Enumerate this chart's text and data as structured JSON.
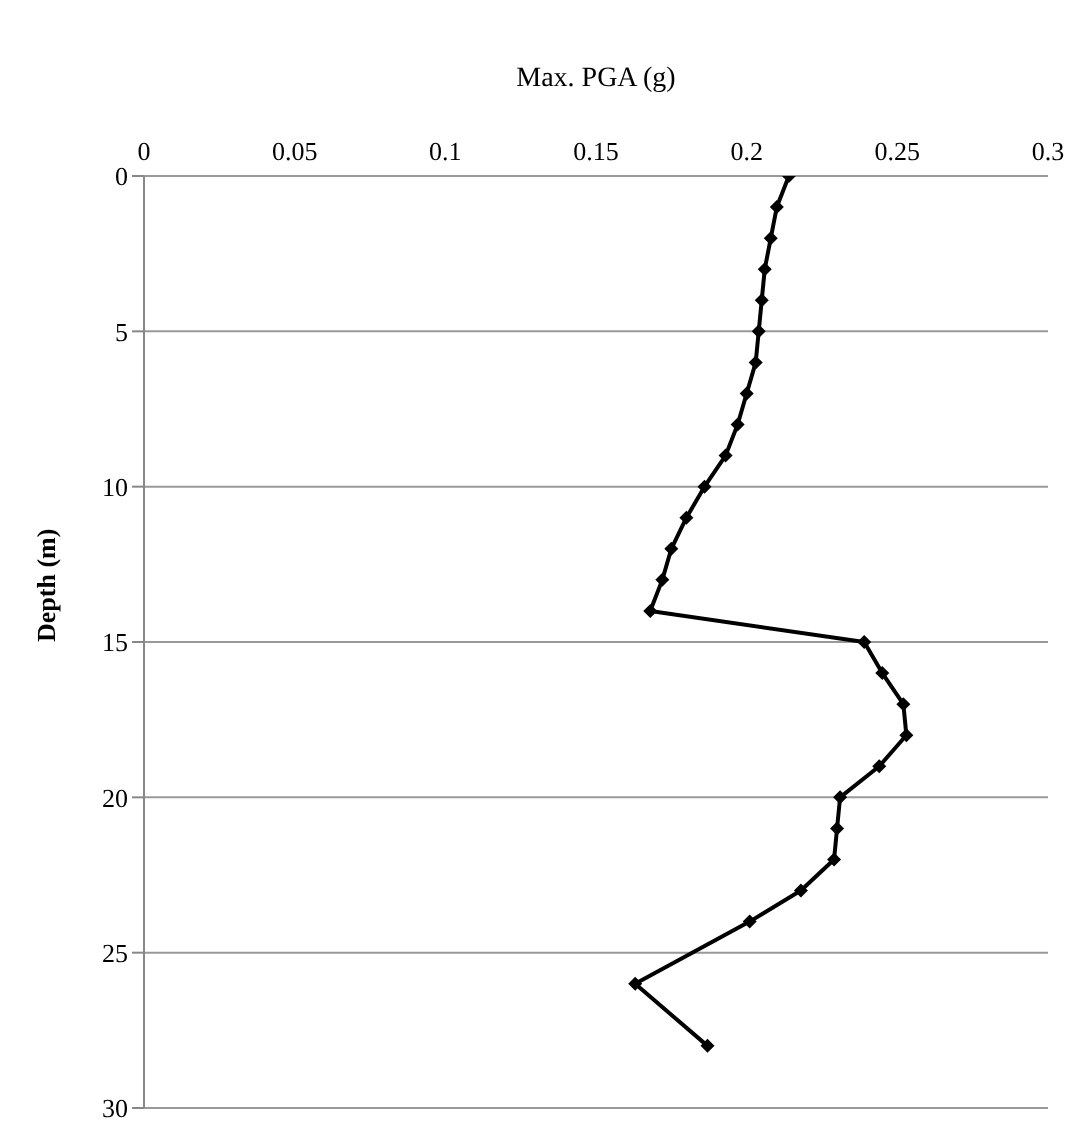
{
  "chart_data": {
    "type": "line",
    "xlabel": "Max. PGA (g)",
    "ylabel": "Depth (m)",
    "x": [
      0.214,
      0.21,
      0.208,
      0.206,
      0.205,
      0.204,
      0.203,
      0.2,
      0.197,
      0.193,
      0.186,
      0.18,
      0.175,
      0.172,
      0.168,
      0.239,
      0.245,
      0.252,
      0.253,
      0.244,
      0.231,
      0.23,
      0.229,
      0.218,
      0.201,
      0.163,
      0.187
    ],
    "values": [
      0,
      1,
      2,
      3,
      4,
      5,
      6,
      7,
      8,
      9,
      10,
      11,
      12,
      13,
      14,
      15,
      16,
      17,
      18,
      19,
      20,
      21,
      22,
      23,
      24,
      26,
      28
    ],
    "color": "#000000",
    "marker": "diamond",
    "line_style": "solid",
    "xlim": [
      0,
      0.3
    ],
    "xticks": [
      0,
      0.05,
      0.1,
      0.15,
      0.2,
      0.25,
      0.3
    ],
    "ylim": [
      30,
      0
    ],
    "yticks": [
      0,
      5,
      10,
      15,
      20,
      25,
      30
    ],
    "grid": "y"
  }
}
